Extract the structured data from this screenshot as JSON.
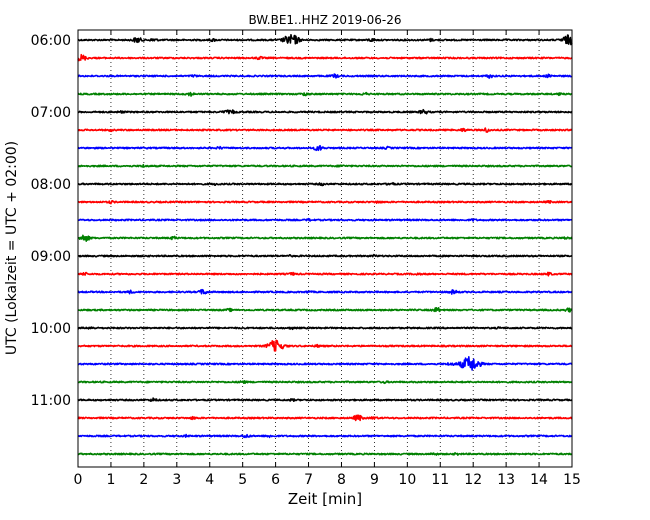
{
  "chart_data": {
    "type": "line",
    "title": "BW.BE1..HHZ 2019-06-26",
    "xlabel": "Zeit  [min]",
    "ylabel": "UTC (Lokalzeit = UTC + 02:00)",
    "xlim": [
      0,
      15
    ],
    "x_ticks": [
      0,
      1,
      2,
      3,
      4,
      5,
      6,
      7,
      8,
      9,
      10,
      11,
      12,
      13,
      14,
      15
    ],
    "x_grid": "dotted",
    "y_tick_labels": [
      "06:00",
      "07:00",
      "08:00",
      "09:00",
      "10:00",
      "11:00"
    ],
    "trace_interval_minutes": 15,
    "trace_colors": [
      "#000000",
      "#ff0000",
      "#0000ff",
      "#008000"
    ],
    "series": [
      {
        "start": "06:00",
        "events": [
          [
            1.8,
            2.5
          ],
          [
            6.4,
            4.0
          ],
          [
            6.6,
            3.0
          ],
          [
            2.3,
            1.5
          ],
          [
            14.9,
            4.5
          ],
          [
            4.1,
            1.0
          ],
          [
            10.7,
            1.0
          ],
          [
            8.9,
            1.2
          ]
        ]
      },
      {
        "start": "06:15",
        "events": [
          [
            0.1,
            3.0
          ],
          [
            5.5,
            1.2
          ]
        ]
      },
      {
        "start": "06:30",
        "events": [
          [
            7.8,
            1.5
          ],
          [
            12.5,
            1.5
          ],
          [
            14.3,
            1.2
          ],
          [
            3.5,
            0.8
          ]
        ]
      },
      {
        "start": "06:45",
        "events": [
          [
            3.4,
            1.6
          ],
          [
            6.9,
            1.3
          ],
          [
            8.7,
            1.2
          ],
          [
            14.6,
            0.8
          ]
        ]
      },
      {
        "start": "07:00",
        "events": [
          [
            4.5,
            1.5
          ],
          [
            4.7,
            1.3
          ],
          [
            10.5,
            2.0
          ],
          [
            1.3,
            0.8
          ]
        ]
      },
      {
        "start": "07:15",
        "events": [
          [
            11.7,
            1.3
          ],
          [
            12.4,
            1.8
          ],
          [
            1.0,
            0.8
          ]
        ]
      },
      {
        "start": "07:30",
        "events": [
          [
            7.3,
            2.4
          ],
          [
            4.3,
            1.0
          ],
          [
            9.4,
            0.8
          ]
        ]
      },
      {
        "start": "07:45",
        "events": [
          [
            2.0,
            1.0
          ],
          [
            8.0,
            0.8
          ]
        ]
      },
      {
        "start": "08:00",
        "events": [
          [
            9.5,
            1.3
          ],
          [
            7.4,
            1.0
          ],
          [
            4.2,
            0.8
          ]
        ]
      },
      {
        "start": "08:15",
        "events": [
          [
            1.0,
            1.0
          ],
          [
            9.1,
            1.0
          ],
          [
            14.3,
            0.8
          ]
        ]
      },
      {
        "start": "08:30",
        "events": [
          [
            7.0,
            0.8
          ],
          [
            12.0,
            0.7
          ]
        ]
      },
      {
        "start": "08:45",
        "events": [
          [
            0.2,
            3.0
          ],
          [
            2.9,
            1.2
          ],
          [
            14.8,
            0.8
          ]
        ]
      },
      {
        "start": "09:00",
        "events": [
          [
            9.0,
            0.8
          ],
          [
            6.4,
            0.7
          ]
        ]
      },
      {
        "start": "09:15",
        "events": [
          [
            0.2,
            1.2
          ],
          [
            6.5,
            1.0
          ],
          [
            14.3,
            1.2
          ],
          [
            10.3,
            0.8
          ]
        ]
      },
      {
        "start": "09:30",
        "events": [
          [
            3.8,
            2.2
          ],
          [
            11.4,
            1.8
          ],
          [
            1.6,
            1.2
          ],
          [
            7.0,
            0.8
          ]
        ]
      },
      {
        "start": "09:45",
        "events": [
          [
            10.9,
            2.0
          ],
          [
            14.9,
            1.5
          ],
          [
            4.6,
            1.0
          ]
        ]
      },
      {
        "start": "10:00",
        "events": [
          [
            0.4,
            1.0
          ],
          [
            6.5,
            0.8
          ],
          [
            12.8,
            0.6
          ]
        ]
      },
      {
        "start": "10:15",
        "events": [
          [
            6.0,
            5.5
          ],
          [
            7.3,
            1.0
          ]
        ]
      },
      {
        "start": "10:30",
        "events": [
          [
            11.9,
            7.0
          ],
          [
            11.3,
            1.2
          ]
        ]
      },
      {
        "start": "10:45",
        "events": [
          [
            5.0,
            1.2
          ],
          [
            9.3,
            0.8
          ]
        ]
      },
      {
        "start": "11:00",
        "events": [
          [
            2.3,
            1.5
          ],
          [
            6.5,
            0.8
          ]
        ]
      },
      {
        "start": "11:15",
        "events": [
          [
            8.5,
            2.6
          ],
          [
            3.5,
            1.0
          ],
          [
            9.0,
            1.0
          ]
        ]
      },
      {
        "start": "11:30",
        "events": [
          [
            5.1,
            1.5
          ],
          [
            5.8,
            1.0
          ],
          [
            3.3,
            0.8
          ]
        ]
      },
      {
        "start": "11:45",
        "events": [
          [
            10.8,
            1.0
          ],
          [
            11.5,
            0.8
          ]
        ]
      }
    ]
  }
}
